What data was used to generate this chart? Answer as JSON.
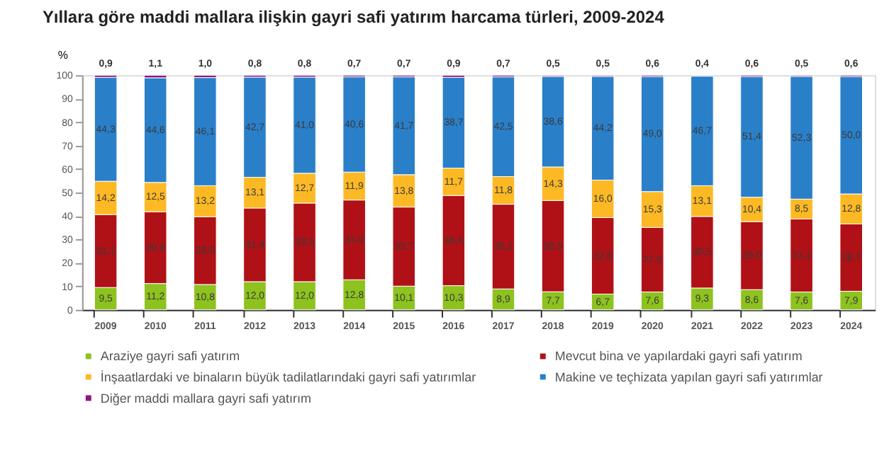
{
  "chart_data": {
    "type": "bar",
    "stacked": true,
    "title": "Yıllara göre maddi mallara ilişkin gayri safi yatırım harcama türleri, 2009-2024",
    "ylabel": "%",
    "categories": [
      "2009",
      "2010",
      "2011",
      "2012",
      "2013",
      "2014",
      "2015",
      "2016",
      "2017",
      "2018",
      "2019",
      "2020",
      "2021",
      "2022",
      "2023",
      "2024"
    ],
    "series": [
      {
        "name": "Araziye gayri safi yatırım",
        "color": "#8dc21f",
        "values": [
          9.5,
          11.2,
          10.8,
          12.0,
          12.0,
          12.8,
          10.1,
          10.3,
          8.9,
          7.7,
          6.7,
          7.6,
          9.3,
          8.6,
          7.6,
          7.9
        ],
        "value_labels": [
          "9,5",
          "11,2",
          "10,8",
          "12,0",
          "12,0",
          "12,8",
          "10,1",
          "10,3",
          "8,9",
          "7,7",
          "6,7",
          "7,6",
          "9,3",
          "8,6",
          "7,6",
          "7,9"
        ]
      },
      {
        "name": "Mevcut bina ve yapılardaki gayri safi yatırım",
        "color": "#b01116",
        "values": [
          31.1,
          30.6,
          28.9,
          31.4,
          33.5,
          34.0,
          33.7,
          38.4,
          36.1,
          38.9,
          32.6,
          27.5,
          30.5,
          29.0,
          31.1,
          28.7
        ],
        "value_labels": [
          "31,1",
          "30,6",
          "28,9",
          "31,4",
          "33,5",
          "34,0",
          "33,7",
          "38,4",
          "36,1",
          "38,9",
          "32,6",
          "27,5",
          "30,5",
          "29,0",
          "31,1",
          "28,7"
        ]
      },
      {
        "name": "İnşaatlardaki ve binaların büyük tadilatlarındaki gayri safi yatırımlar",
        "color": "#fdb924",
        "values": [
          14.2,
          12.5,
          13.2,
          13.1,
          12.7,
          11.9,
          13.8,
          11.7,
          11.8,
          14.3,
          16.0,
          15.3,
          13.1,
          10.4,
          8.5,
          12.8
        ],
        "value_labels": [
          "14,2",
          "12,5",
          "13,2",
          "13,1",
          "12,7",
          "11,9",
          "13,8",
          "11,7",
          "11,8",
          "14,3",
          "16,0",
          "15,3",
          "13,1",
          "10,4",
          "8,5",
          "12,8"
        ]
      },
      {
        "name": "Makine ve teçhizata yapılan gayri safi yatırımlar",
        "color": "#2a7fc9",
        "values": [
          44.3,
          44.6,
          46.1,
          42.7,
          41.0,
          40.6,
          41.7,
          38.7,
          42.5,
          38.6,
          44.2,
          49.0,
          46.7,
          51.4,
          52.3,
          50.0
        ],
        "value_labels": [
          "44,3",
          "44,6",
          "46,1",
          "42,7",
          "41,0",
          "40,6",
          "41,7",
          "38,7",
          "42,5",
          "38,6",
          "44,2",
          "49,0",
          "46,7",
          "51,4",
          "52,3",
          "50,0"
        ]
      },
      {
        "name": "Diğer maddi mallara gayri safi yatırım",
        "color": "#8b1a7e",
        "values": [
          0.9,
          1.1,
          1.0,
          0.8,
          0.8,
          0.7,
          0.7,
          0.9,
          0.7,
          0.5,
          0.5,
          0.6,
          0.4,
          0.6,
          0.5,
          0.6
        ],
        "value_labels": [
          "0,9",
          "1,1",
          "1,0",
          "0,8",
          "0,8",
          "0,7",
          "0,7",
          "0,9",
          "0,7",
          "0,5",
          "0,5",
          "0,6",
          "0,4",
          "0,6",
          "0,5",
          "0,6"
        ]
      }
    ],
    "ylim": [
      0,
      100
    ],
    "yticks": [
      0,
      10,
      20,
      30,
      40,
      50,
      60,
      70,
      80,
      90,
      100
    ],
    "grid": false,
    "legend": "bottom"
  }
}
